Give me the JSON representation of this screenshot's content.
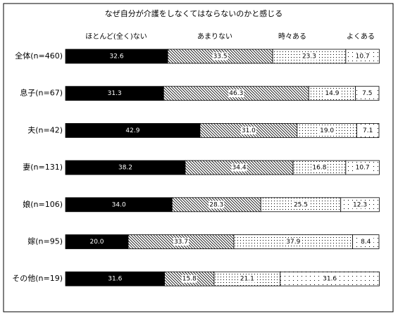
{
  "chart_data": {
    "type": "stacked-bar-100",
    "orientation": "horizontal",
    "title": "なぜ自分が介護をしなくてはならないのかと感じる",
    "categories": [
      "全体(n=460)",
      "息子(n=67)",
      "夫(n=42)",
      "妻(n=131)",
      "娘(n=106)",
      "嫁(n=95)",
      "その他(n=19)"
    ],
    "xlim": [
      0,
      100
    ],
    "series": [
      {
        "name": "ほとんど(全く)ない",
        "color": "#000000",
        "pattern": "solid",
        "values": [
          32.6,
          31.3,
          42.9,
          38.2,
          34.0,
          20.0,
          31.6
        ],
        "value_labels": [
          "32.6",
          "31.3",
          "42.9",
          "38.2",
          "34.0",
          "20.0",
          "31.6"
        ]
      },
      {
        "name": "あまりない",
        "color": "#000000",
        "pattern": "hatch",
        "values": [
          33.5,
          46.3,
          31.0,
          34.4,
          28.3,
          33.7,
          15.8
        ],
        "value_labels": [
          "33.5",
          "46.3",
          "31.0",
          "34.4",
          "28.3",
          "33.7",
          "15.8"
        ]
      },
      {
        "name": "時々ある",
        "color": "#000000",
        "pattern": "dots",
        "values": [
          23.3,
          14.9,
          19.0,
          16.8,
          25.5,
          37.9,
          21.1
        ],
        "value_labels": [
          "23.3",
          "14.9",
          "19.0",
          "16.8",
          "25.5",
          "37.9",
          "21.1"
        ]
      },
      {
        "name": "よくある",
        "color": "#000000",
        "pattern": "sparse-dots",
        "values": [
          10.7,
          7.5,
          7.1,
          10.7,
          12.3,
          8.4,
          31.6
        ],
        "value_labels": [
          "10.7",
          "7.5",
          "7.1",
          "10.7",
          "12.3",
          "8.4",
          "31.6"
        ]
      }
    ]
  }
}
